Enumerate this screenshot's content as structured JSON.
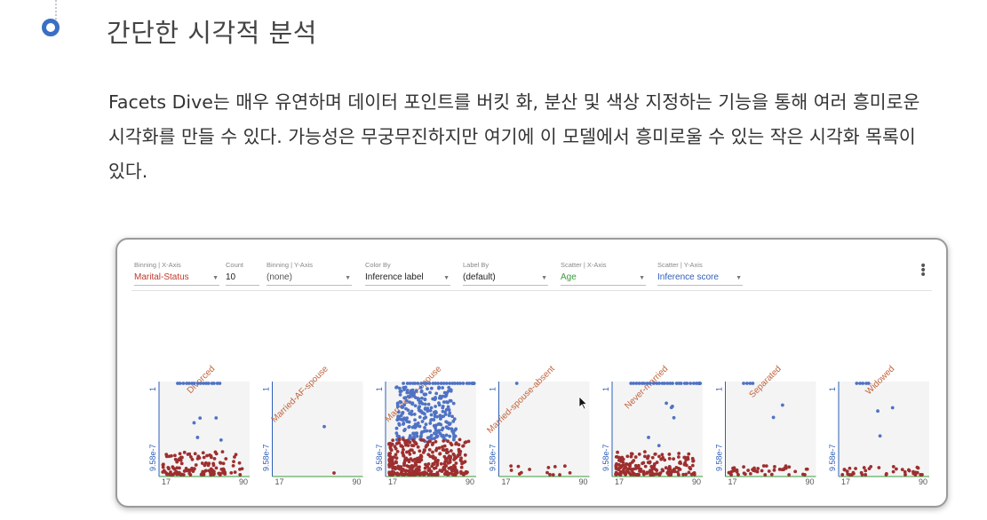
{
  "section": {
    "title": "간단한 시각적 분석",
    "paragraph": "Facets Dive는 매우 유연하며 데이터 포인트를 버킷 화, 분산 및 색상 지정하는 기능을 통해 여러 흥미로운 시각화를 만들 수 있다. 가능성은 무궁무진하지만 여기에 이 모델에서 흥미로울 수 있는 작은 시각화 목록이 있다."
  },
  "controls": [
    {
      "label": "Binning | X-Axis",
      "value": "Marital-Status",
      "color": "#c0392b",
      "dropdown": true
    },
    {
      "label": "Count",
      "value": "10",
      "color": "#222222",
      "dropdown": false
    },
    {
      "label": "Binning | Y-Axis",
      "value": "(none)",
      "color": "#555555",
      "dropdown": true
    },
    {
      "label": "Color By",
      "value": "Inference label",
      "color": "#222222",
      "dropdown": true
    },
    {
      "label": "Label By",
      "value": "(default)",
      "color": "#222222",
      "dropdown": true
    },
    {
      "label": "Scatter | X-Axis",
      "value": "Age",
      "color": "#3a9a3a",
      "dropdown": true
    },
    {
      "label": "Scatter | Y-Axis",
      "value": "Inference score",
      "color": "#2e5fb8",
      "dropdown": true
    }
  ],
  "colors": {
    "blue_points": "#4f72c4",
    "red_points": "#9e2f2f",
    "x_axis": "#3a9a3a",
    "y_axis": "#2e5fb8",
    "category_label": "#c0623a"
  },
  "chart_data": {
    "type": "scatter",
    "facet_by": "Marital-Status",
    "x_field": "Age",
    "y_field": "Inference score",
    "color_by": "Inference label",
    "xlim": [
      17,
      90
    ],
    "ylim": [
      9.58e-07,
      1
    ],
    "x_tick_labels": [
      "17",
      "90"
    ],
    "y_tick_labels": [
      "1",
      "9.58e-7"
    ],
    "facets": [
      {
        "label": "Divorced",
        "blue_top": 16,
        "blue_mid": 5,
        "red": 130
      },
      {
        "label": "Married-AF-spouse",
        "blue_top": 0,
        "blue_mid": 1,
        "red": 1
      },
      {
        "label": "Married-civ-spouse",
        "blue_top": 45,
        "blue_mid": 260,
        "red": 360
      },
      {
        "label": "Married-spouse-absent",
        "blue_top": 1,
        "blue_mid": 0,
        "red": 14
      },
      {
        "label": "Never-married",
        "blue_top": 32,
        "blue_mid": 6,
        "red": 190
      },
      {
        "label": "Separated",
        "blue_top": 4,
        "blue_mid": 2,
        "red": 45
      },
      {
        "label": "Widowed",
        "blue_top": 5,
        "blue_mid": 3,
        "red": 38
      }
    ]
  }
}
